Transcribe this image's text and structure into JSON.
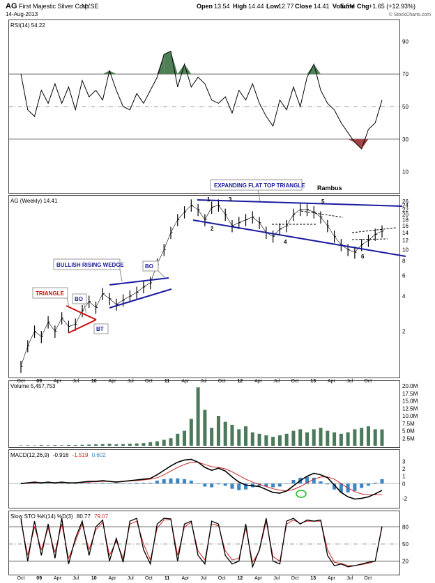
{
  "header": {
    "symbol": "AG",
    "company": "First Majestic Silver Corp.",
    "exchange": "NYSE",
    "date": "14-Aug-2013",
    "open_label": "Open",
    "open": "13.54",
    "high_label": "High",
    "high": "14.44",
    "low_label": "Low",
    "low": "12.77",
    "close_label": "Close",
    "close": "14.41",
    "volume": "5.5M",
    "chg_label": "Chg",
    "chg": "+1.65 (+12.93%)",
    "watermark": "© StockCharts.com"
  },
  "colors": {
    "price": "#000000",
    "volume_bar": "#4a7a5a",
    "rsi_fill_over": "#4f7f57",
    "rsi_fill_under": "#a04040",
    "macd_line": "#000000",
    "signal_line": "#cc2222",
    "histogram": "#3b86c4",
    "annotation_blue": "#1a1aa0",
    "annotation_red": "#cc1111",
    "green_circle": "#22bb22"
  },
  "chart_data": [
    {
      "type": "line",
      "panel": "rsi",
      "legend": "RSI(14) 54.22",
      "ylim": [
        0,
        100
      ],
      "yticks": [
        10,
        30,
        50,
        70,
        90
      ],
      "reference_lines": [
        30,
        50,
        70
      ],
      "x": [
        0,
        3,
        6,
        9,
        12,
        15,
        18,
        21,
        24,
        27,
        30,
        33,
        36,
        39,
        42,
        45,
        48,
        51,
        54,
        57,
        60,
        63,
        66,
        69,
        72,
        75,
        78,
        81,
        84,
        87,
        90,
        93,
        96,
        99,
        102,
        105,
        108,
        111,
        114,
        117,
        120,
        123,
        126,
        129,
        132,
        135,
        138,
        141,
        144,
        147,
        150,
        153,
        156,
        159
      ],
      "values": [
        70,
        48,
        44,
        60,
        52,
        64,
        52,
        62,
        48,
        66,
        56,
        60,
        54,
        72,
        60,
        50,
        48,
        58,
        52,
        60,
        68,
        82,
        84,
        62,
        76,
        62,
        68,
        64,
        54,
        52,
        56,
        46,
        60,
        54,
        64,
        52,
        44,
        38,
        54,
        48,
        62,
        50,
        68,
        76,
        60,
        52,
        48,
        40,
        34,
        28,
        24,
        36,
        40,
        54
      ]
    },
    {
      "type": "line",
      "panel": "price",
      "legend": "AG (Weekly) 14.41",
      "scale": "log",
      "ylim": [
        0.85,
        27
      ],
      "yticks": [
        2,
        4,
        6,
        8,
        10,
        12,
        14,
        16,
        18,
        20,
        22,
        24,
        26
      ],
      "x": [
        0,
        3,
        6,
        9,
        12,
        15,
        18,
        21,
        24,
        27,
        30,
        33,
        36,
        39,
        42,
        45,
        48,
        51,
        54,
        57,
        60,
        63,
        66,
        69,
        72,
        75,
        78,
        81,
        84,
        87,
        90,
        93,
        96,
        99,
        102,
        105,
        108,
        111,
        114,
        117,
        120,
        123,
        126,
        129,
        132,
        135,
        138,
        141,
        144,
        147,
        150,
        153,
        156,
        159
      ],
      "values": [
        1.0,
        1.5,
        2.0,
        1.8,
        2.4,
        2.0,
        2.6,
        2.2,
        2.3,
        3.0,
        3.6,
        3.2,
        4.2,
        3.8,
        3.4,
        3.7,
        4.0,
        4.3,
        4.8,
        5.2,
        7.5,
        10,
        14,
        18,
        21,
        24,
        22,
        18,
        23,
        24,
        20,
        16,
        17,
        18,
        19,
        17,
        14,
        13,
        15,
        16,
        20,
        22,
        22,
        21,
        19,
        16,
        13,
        11,
        10,
        9.5,
        11,
        12,
        13.5,
        14.41
      ]
    },
    {
      "type": "bar",
      "panel": "volume",
      "legend": "Volume 5,457,753",
      "ylim": [
        0,
        20000000
      ],
      "ytick_labels": [
        "2.5M",
        "5.0M",
        "7.5M",
        "10.0M",
        "12.5M",
        "15.0M",
        "17.5M",
        "20.0M"
      ],
      "x": [
        0,
        3,
        6,
        9,
        12,
        15,
        18,
        21,
        24,
        27,
        30,
        33,
        36,
        39,
        42,
        45,
        48,
        51,
        54,
        57,
        60,
        63,
        66,
        69,
        72,
        75,
        78,
        81,
        84,
        87,
        90,
        93,
        96,
        99,
        102,
        105,
        108,
        111,
        114,
        117,
        120,
        123,
        126,
        129,
        132,
        135,
        138,
        141,
        144,
        147,
        150,
        153,
        156,
        159
      ],
      "values": [
        100000,
        150000,
        100000,
        200000,
        150000,
        200000,
        150000,
        250000,
        200000,
        300000,
        400000,
        500000,
        600000,
        700000,
        500000,
        600000,
        700000,
        800000,
        900000,
        1200000,
        1500000,
        2000000,
        2500000,
        4000000,
        5000000,
        9000000,
        19500000,
        12000000,
        6000000,
        10000000,
        8000000,
        7000000,
        5500000,
        6500000,
        4500000,
        4000000,
        3500000,
        3000000,
        3500000,
        4000000,
        5000000,
        5500000,
        4500000,
        5500000,
        6000000,
        5000000,
        4500000,
        4000000,
        4500000,
        5500000,
        6000000,
        6500000,
        5500000,
        5457753
      ]
    },
    {
      "type": "line",
      "panel": "macd",
      "legend_label": "MACD(12,26,9)",
      "legend_macd": "-0.916",
      "legend_signal": "-1.519",
      "legend_hist": "0.602",
      "ylim": [
        -3,
        4
      ],
      "yticks": [
        -2,
        0,
        1,
        2,
        3
      ],
      "x": [
        0,
        3,
        6,
        9,
        12,
        15,
        18,
        21,
        24,
        27,
        30,
        33,
        36,
        39,
        42,
        45,
        48,
        51,
        54,
        57,
        60,
        63,
        66,
        69,
        72,
        75,
        78,
        81,
        84,
        87,
        90,
        93,
        96,
        99,
        102,
        105,
        108,
        111,
        114,
        117,
        120,
        123,
        126,
        129,
        132,
        135,
        138,
        141,
        144,
        147,
        150,
        153,
        156,
        159
      ],
      "series": [
        {
          "name": "MACD",
          "values": [
            0,
            0.1,
            0.2,
            0.1,
            0.2,
            0.1,
            0.2,
            0.1,
            0.1,
            0.2,
            0.3,
            0.3,
            0.4,
            0.3,
            0.2,
            0.3,
            0.4,
            0.5,
            0.6,
            0.7,
            1.2,
            1.8,
            2.4,
            2.9,
            3.2,
            3.3,
            2.9,
            2.2,
            1.8,
            2.1,
            1.7,
            0.9,
            0.2,
            -0.2,
            -0.3,
            -0.4,
            -0.8,
            -1.2,
            -1.3,
            -1.0,
            -0.3,
            0.4,
            1.0,
            1.4,
            1.2,
            0.8,
            -0.2,
            -1.2,
            -1.8,
            -2.1,
            -2.0,
            -1.8,
            -1.4,
            -0.916
          ]
        },
        {
          "name": "Signal",
          "values": [
            0,
            0.05,
            0.1,
            0.1,
            0.15,
            0.1,
            0.15,
            0.1,
            0.1,
            0.15,
            0.2,
            0.25,
            0.3,
            0.3,
            0.25,
            0.3,
            0.35,
            0.4,
            0.5,
            0.6,
            0.8,
            1.2,
            1.7,
            2.2,
            2.6,
            2.9,
            2.9,
            2.6,
            2.3,
            2.2,
            2.0,
            1.6,
            1.1,
            0.6,
            0.2,
            -0.1,
            -0.4,
            -0.7,
            -0.9,
            -1.0,
            -0.8,
            -0.4,
            0.1,
            0.6,
            0.9,
            0.9,
            0.6,
            0.0,
            -0.6,
            -1.1,
            -1.4,
            -1.5,
            -1.52,
            -1.519
          ]
        }
      ]
    },
    {
      "type": "line",
      "panel": "stochastics",
      "legend_label": "Slow STO %K(14) %D(3)",
      "legend_k": "80.77",
      "legend_d": "79.07",
      "ylim": [
        0,
        100
      ],
      "yticks": [
        20,
        50,
        80
      ],
      "reference_lines": [
        20,
        50,
        80
      ],
      "x": [
        0,
        3,
        6,
        9,
        12,
        15,
        18,
        21,
        24,
        27,
        30,
        33,
        36,
        39,
        42,
        45,
        48,
        51,
        54,
        57,
        60,
        63,
        66,
        69,
        72,
        75,
        78,
        81,
        84,
        87,
        90,
        93,
        96,
        99,
        102,
        105,
        108,
        111,
        114,
        117,
        120,
        123,
        126,
        129,
        132,
        135,
        138,
        141,
        144,
        147,
        150,
        153,
        156,
        159
      ],
      "series": [
        {
          "name": "%K",
          "values": [
            95,
            20,
            90,
            30,
            85,
            25,
            95,
            15,
            60,
            90,
            30,
            80,
            92,
            20,
            60,
            18,
            90,
            95,
            40,
            15,
            85,
            95,
            94,
            20,
            85,
            90,
            30,
            15,
            90,
            85,
            30,
            15,
            20,
            85,
            10,
            40,
            95,
            20,
            15,
            90,
            95,
            85,
            92,
            90,
            92,
            30,
            12,
            15,
            10,
            12,
            15,
            18,
            20,
            80.77
          ]
        },
        {
          "name": "%D",
          "values": [
            90,
            30,
            80,
            40,
            78,
            35,
            85,
            25,
            55,
            85,
            40,
            75,
            88,
            30,
            55,
            25,
            85,
            90,
            50,
            22,
            78,
            92,
            93,
            30,
            80,
            88,
            38,
            22,
            85,
            82,
            38,
            22,
            25,
            78,
            18,
            38,
            90,
            28,
            20,
            85,
            92,
            86,
            90,
            90,
            90,
            40,
            18,
            16,
            12,
            12,
            14,
            16,
            20,
            79.07
          ]
        }
      ]
    }
  ],
  "axis": {
    "months": [
      "Oct",
      "09",
      "Apr",
      "Jul",
      "10",
      "Apr",
      "Jul",
      "Oct",
      "11",
      "Apr",
      "Jul",
      "Oct",
      "12",
      "Apr",
      "Jul",
      "Oct",
      "13",
      "Apr",
      "Jul",
      "Oct"
    ],
    "bold": [
      "09",
      "10",
      "11",
      "12",
      "13"
    ]
  },
  "annotations": {
    "expanding_triangle": "EXPANDING FLAT TOP TRIANGLE",
    "rambus": "Rambus",
    "bullish_wedge": "BULLISH RISING WEDGE",
    "triangle": "TRIANGLE",
    "bo1": "BO",
    "bo2": "BO",
    "bt": "BT",
    "pt1": "1",
    "pt2": "2",
    "pt3": "3",
    "pt4": "4",
    "pt5": "5",
    "pt6": "6"
  }
}
